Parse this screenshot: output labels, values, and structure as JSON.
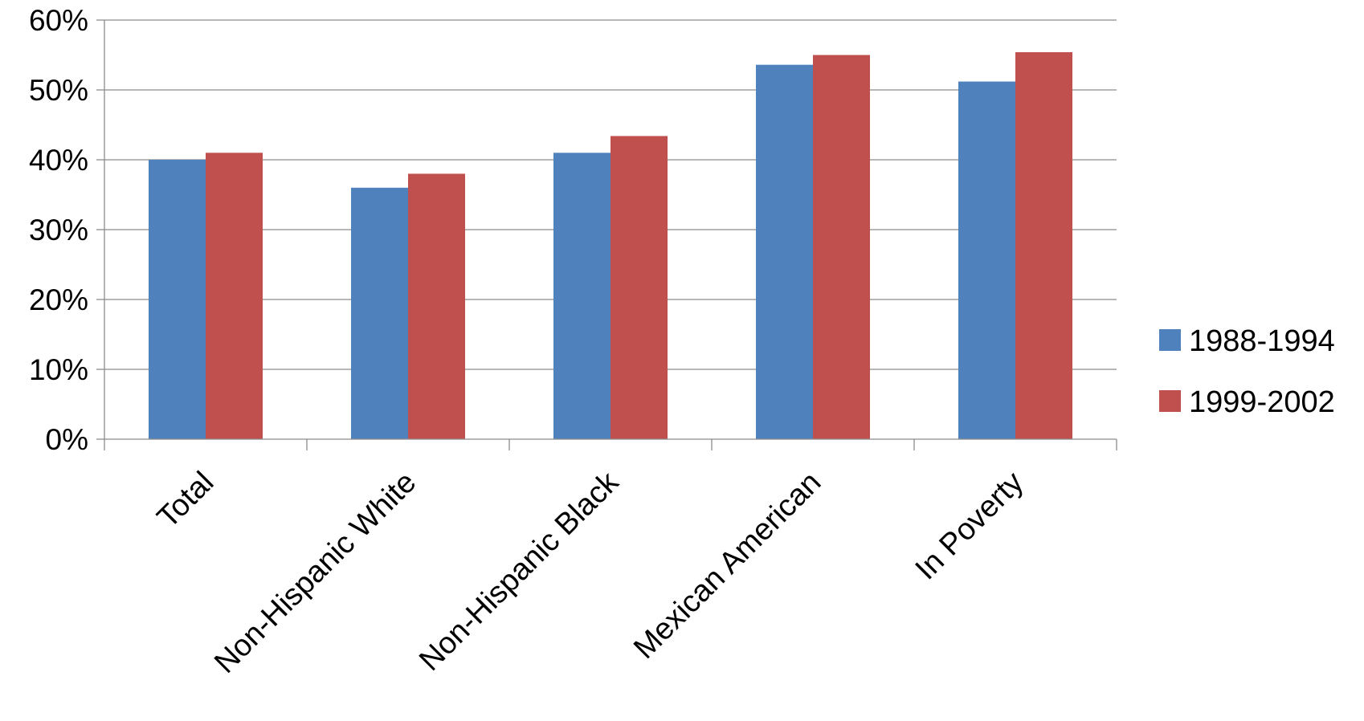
{
  "chart_data": {
    "type": "bar",
    "categories": [
      "Total",
      "Non-Hispanic White",
      "Non-Hispanic Black",
      "Mexican American",
      "In Poverty"
    ],
    "series": [
      {
        "name": "1988-1994",
        "color": "#4F81BD",
        "values": [
          40,
          36,
          41,
          53.6,
          51.2
        ]
      },
      {
        "name": "1999-2002",
        "color": "#C0504D",
        "values": [
          41,
          38,
          43.4,
          55,
          55.4
        ]
      }
    ],
    "ylim": [
      0,
      60
    ],
    "yticks": [
      0,
      10,
      20,
      30,
      40,
      50,
      60
    ],
    "ytick_labels": [
      "0%",
      "10%",
      "20%",
      "30%",
      "40%",
      "50%",
      "60%"
    ],
    "grid": true,
    "legend_position": "right",
    "title": "",
    "xlabel": "",
    "ylabel": ""
  }
}
